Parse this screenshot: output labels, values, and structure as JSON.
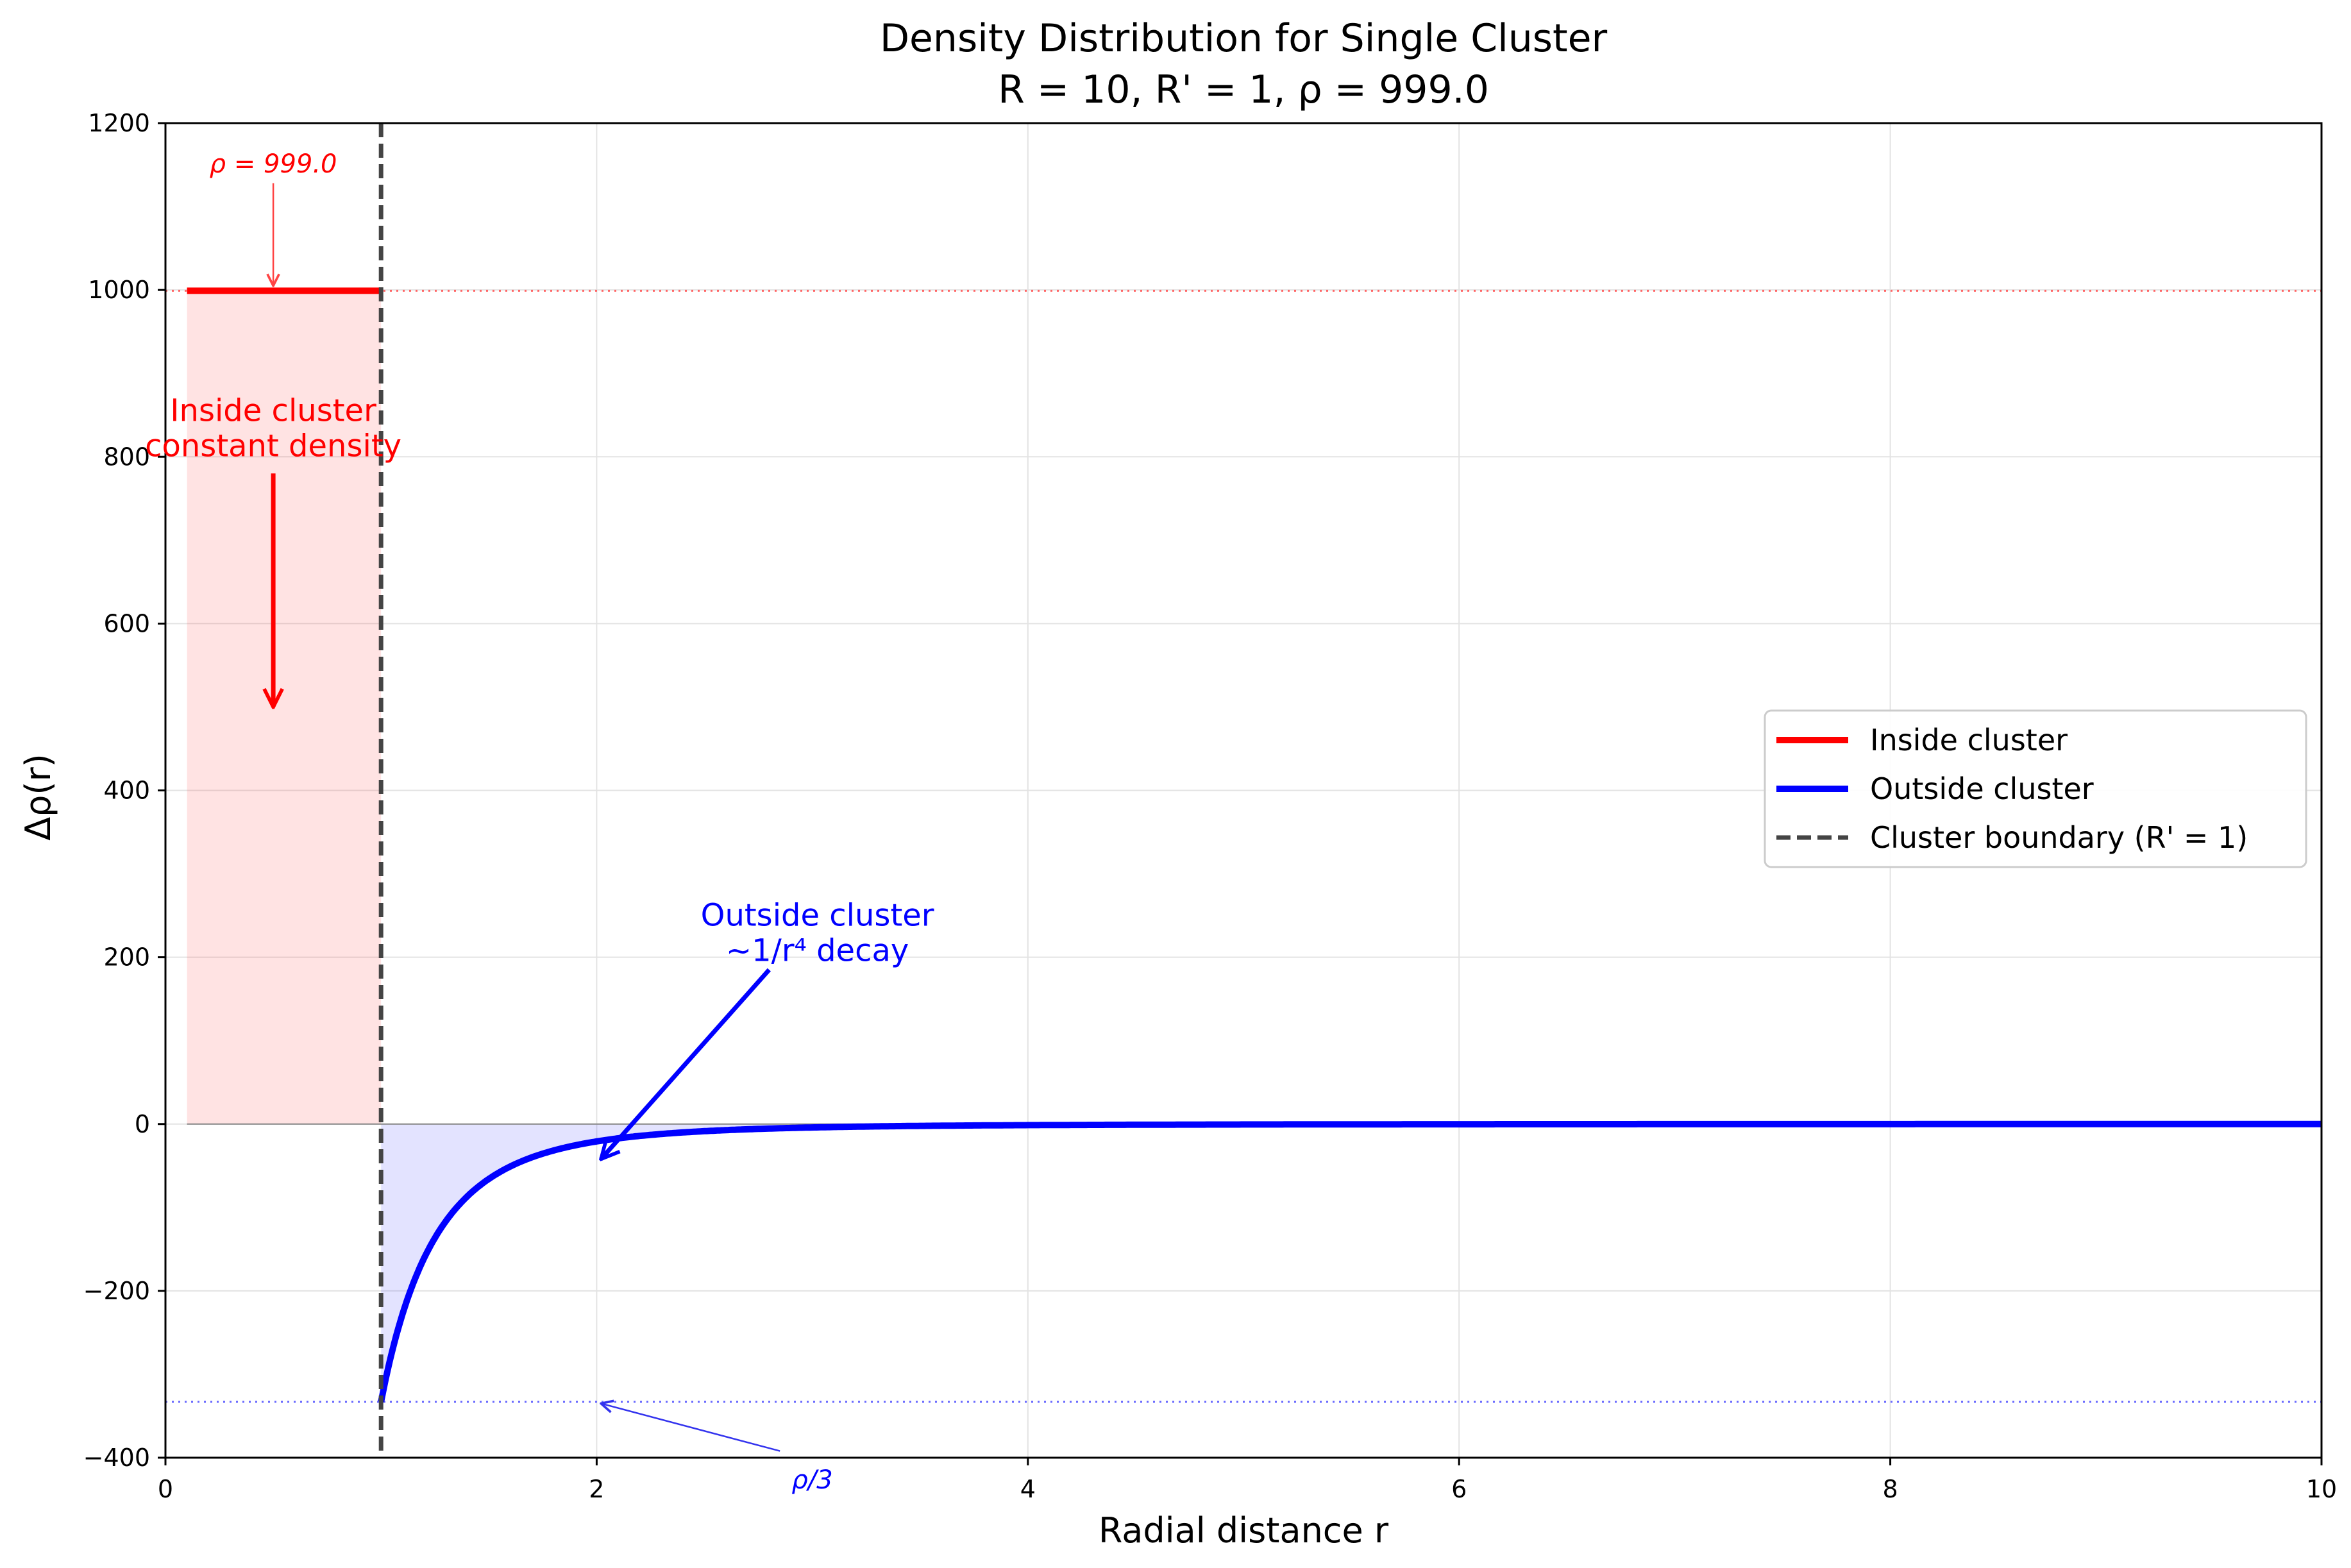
{
  "chart_data": {
    "type": "line",
    "title": "Density Distribution for Single Cluster",
    "subtitle": "R = 10, R' = 1, ρ = 999.0",
    "xlabel": "Radial distance r",
    "ylabel": "Δρ(r)",
    "xlim": [
      0,
      10
    ],
    "ylim": [
      -400,
      1200
    ],
    "xticks": [
      0,
      2,
      4,
      6,
      8,
      10
    ],
    "yticks": [
      -400,
      -200,
      0,
      200,
      400,
      600,
      800,
      1000,
      1200
    ],
    "xtick_labels": [
      "0",
      "2",
      "4",
      "6",
      "8",
      "10"
    ],
    "ytick_labels": [
      "−400",
      "−200",
      "0",
      "200",
      "400",
      "600",
      "800",
      "1000",
      "1200"
    ],
    "grid": true,
    "legend_position": "center-right",
    "series": [
      {
        "name": "Inside cluster",
        "color": "#ff0000",
        "style": "solid",
        "x": [
          0.1,
          1.0
        ],
        "y": [
          999,
          999
        ]
      },
      {
        "name": "Outside cluster",
        "color": "#0000ff",
        "style": "solid",
        "formula": "-333 / r^4",
        "x": [
          1.0,
          1.1,
          1.2,
          1.3,
          1.4,
          1.5,
          1.75,
          2.0,
          2.5,
          3.0,
          4.0,
          5.0,
          6.0,
          8.0,
          10.0
        ],
        "y": [
          -333,
          -227.4,
          -160.6,
          -116.6,
          -86.7,
          -65.8,
          -35.5,
          -20.8,
          -8.5,
          -4.1,
          -1.3,
          -0.5,
          -0.3,
          -0.1,
          0
        ]
      }
    ],
    "reference_lines": [
      {
        "name": "Cluster boundary (R' = 1)",
        "orientation": "vertical",
        "value": 1,
        "color": "#444444",
        "style": "dashed"
      },
      {
        "orientation": "horizontal",
        "value": 999,
        "color": "#ff6666",
        "style": "dotted"
      },
      {
        "orientation": "horizontal",
        "value": -333,
        "color": "#6666ff",
        "style": "dotted"
      }
    ],
    "legend": [
      {
        "label": "Inside cluster",
        "color": "#ff0000",
        "style": "solid"
      },
      {
        "label": "Outside cluster",
        "color": "#0000ff",
        "style": "solid"
      },
      {
        "label": "Cluster boundary (R' = 1)",
        "color": "#444444",
        "style": "dashed"
      }
    ],
    "annotations": [
      {
        "text": "ρ = 999.0",
        "color": "#ff0000",
        "italic": true,
        "text_at": [
          0.5,
          1150
        ],
        "arrow_to": [
          0.5,
          1005
        ]
      },
      {
        "text": "Inside cluster\nconstant density",
        "color": "#ff0000",
        "text_at": [
          0.5,
          835
        ],
        "arrow_from": [
          0.5,
          780
        ],
        "arrow_to": [
          0.5,
          500
        ]
      },
      {
        "text": "Outside cluster\n~1/r⁴ decay",
        "color": "#0000ff",
        "text_at": [
          3.0,
          230
        ],
        "arrow_from": [
          2.8,
          185
        ],
        "arrow_to": [
          2.02,
          -42
        ]
      },
      {
        "text": "ρ/3",
        "color": "#0000ff",
        "italic": true,
        "text_at": [
          3.0,
          -400
        ],
        "arrow_from": [
          2.85,
          -392
        ],
        "arrow_to": [
          2.02,
          -335
        ]
      }
    ]
  }
}
